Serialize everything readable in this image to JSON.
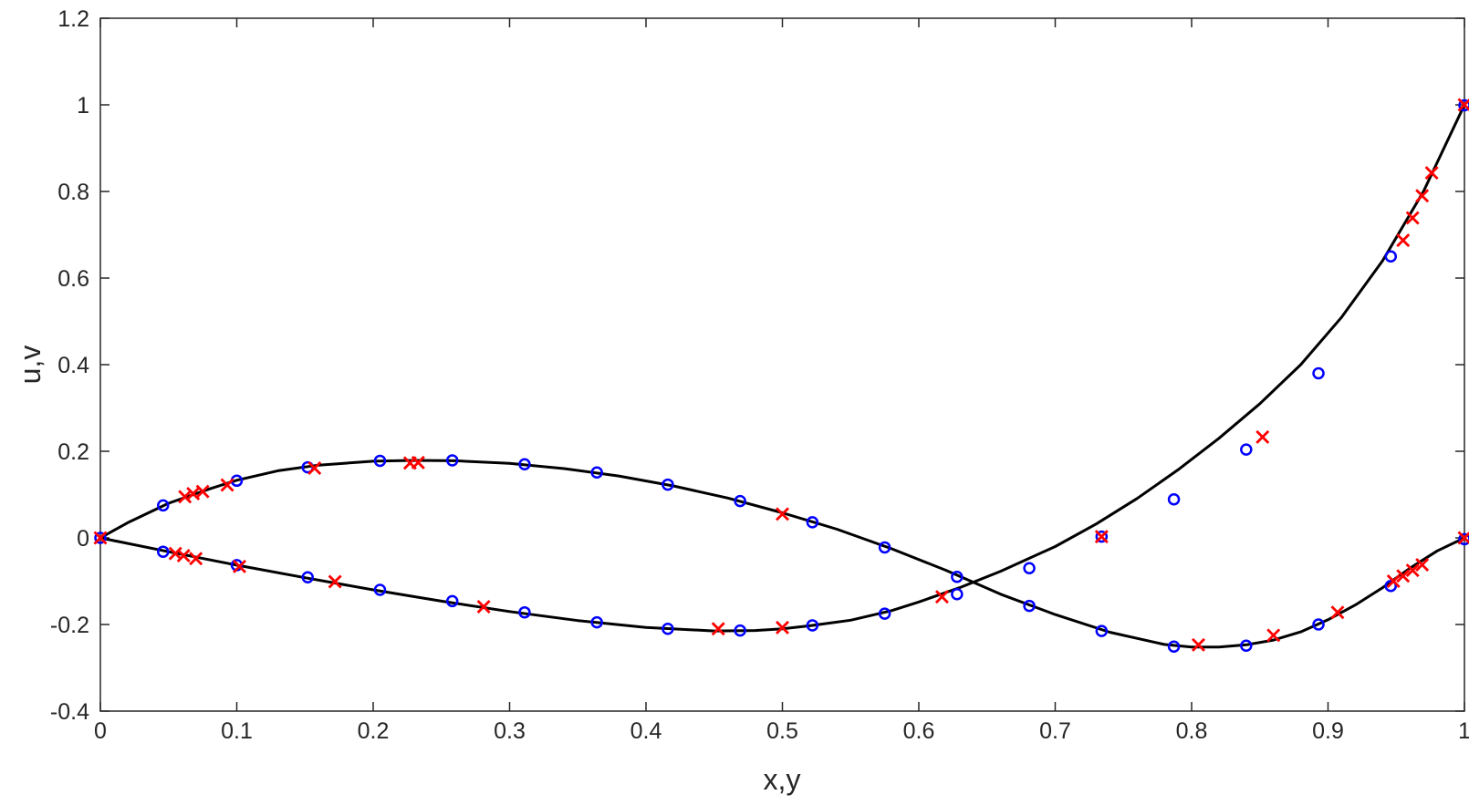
{
  "chart_data": {
    "type": "line",
    "xlabel": "x,y",
    "ylabel": "u,v",
    "xlim": [
      0,
      1
    ],
    "ylim": [
      -0.4,
      1.2
    ],
    "xticks": [
      0,
      0.1,
      0.2,
      0.3,
      0.4,
      0.5,
      0.6,
      0.7,
      0.8,
      0.9,
      1
    ],
    "xtick_labels": [
      "0",
      "0.1",
      "0.2",
      "0.3",
      "0.4",
      "0.5",
      "0.6",
      "0.7",
      "0.8",
      "0.9",
      "1"
    ],
    "yticks": [
      -0.4,
      -0.2,
      0,
      0.2,
      0.4,
      0.6,
      0.8,
      1,
      1.2
    ],
    "ytick_labels": [
      "-0.4",
      "-0.2",
      "0",
      "0.2",
      "0.4",
      "0.6",
      "0.8",
      "1",
      "1.2"
    ],
    "grid": false,
    "legend": "none",
    "colors": {
      "line": "#000000",
      "circle": "#0000ff",
      "cross": "#ff0000",
      "axis": "#262626"
    },
    "lines": [
      {
        "x": [
          0,
          0.02,
          0.05,
          0.08,
          0.1,
          0.13,
          0.16,
          0.2,
          0.23,
          0.26,
          0.3,
          0.34,
          0.38,
          0.42,
          0.46,
          0.5,
          0.54,
          0.58,
          0.62,
          0.66,
          0.7,
          0.74,
          0.78,
          0.8,
          0.82,
          0.84,
          0.86,
          0.88,
          0.9,
          0.92,
          0.94,
          0.96,
          0.98,
          1
        ],
        "y": [
          0,
          0.035,
          0.08,
          0.113,
          0.133,
          0.155,
          0.168,
          0.177,
          0.179,
          0.178,
          0.172,
          0.16,
          0.143,
          0.12,
          0.092,
          0.058,
          0.02,
          -0.025,
          -0.075,
          -0.13,
          -0.177,
          -0.218,
          -0.246,
          -0.252,
          -0.252,
          -0.247,
          -0.236,
          -0.217,
          -0.189,
          -0.155,
          -0.115,
          -0.07,
          -0.03,
          0
        ]
      },
      {
        "x": [
          0,
          0.05,
          0.1,
          0.15,
          0.2,
          0.25,
          0.3,
          0.35,
          0.4,
          0.45,
          0.48,
          0.5,
          0.52,
          0.55,
          0.58,
          0.6,
          0.63,
          0.66,
          0.7,
          0.73,
          0.76,
          0.79,
          0.82,
          0.85,
          0.88,
          0.91,
          0.94,
          0.97,
          1
        ],
        "y": [
          0,
          -0.032,
          -0.063,
          -0.092,
          -0.12,
          -0.146,
          -0.17,
          -0.191,
          -0.207,
          -0.215,
          -0.214,
          -0.21,
          -0.203,
          -0.19,
          -0.168,
          -0.148,
          -0.115,
          -0.077,
          -0.02,
          0.032,
          0.091,
          0.157,
          0.23,
          0.31,
          0.4,
          0.51,
          0.64,
          0.8,
          1
        ]
      }
    ],
    "markers_circle": {
      "x": [
        0,
        0.046,
        0.1,
        0.152,
        0.205,
        0.258,
        0.311,
        0.364,
        0.416,
        0.469,
        0.522,
        0.575,
        0.628,
        0.681,
        0.734,
        0.787,
        0.84,
        0.893,
        0.946,
        1,
        0.046,
        0.1,
        0.152,
        0.205,
        0.258,
        0.311,
        0.364,
        0.416,
        0.469,
        0.522,
        0.575,
        0.628,
        0.681,
        0.734,
        0.787,
        0.84,
        0.893,
        0.946,
        1
      ],
      "y": [
        0,
        0.075,
        0.132,
        0.163,
        0.178,
        0.179,
        0.17,
        0.151,
        0.123,
        0.085,
        0.036,
        -0.022,
        -0.09,
        -0.157,
        -0.215,
        -0.251,
        -0.249,
        -0.2,
        -0.111,
        -0.003,
        -0.032,
        -0.063,
        -0.091,
        -0.12,
        -0.146,
        -0.172,
        -0.195,
        -0.21,
        -0.214,
        -0.202,
        -0.175,
        -0.13,
        -0.07,
        0.003,
        0.089,
        0.204,
        0.38,
        0.65,
        0.999
      ]
    },
    "markers_cross": {
      "x": [
        0,
        0.062,
        0.068,
        0.075,
        0.093,
        0.157,
        0.227,
        0.233,
        0.5,
        0.805,
        0.86,
        0.907,
        0.948,
        0.955,
        0.962,
        0.969,
        1,
        0.055,
        0.061,
        0.07,
        0.102,
        0.172,
        0.281,
        0.453,
        0.5,
        0.617,
        0.734,
        0.852,
        0.955,
        0.962,
        0.969,
        0.976,
        1
      ],
      "y": [
        0,
        0.095,
        0.102,
        0.107,
        0.122,
        0.161,
        0.173,
        0.174,
        0.055,
        -0.247,
        -0.225,
        -0.172,
        -0.1,
        -0.088,
        -0.075,
        -0.062,
        0,
        -0.036,
        -0.041,
        -0.048,
        -0.066,
        -0.101,
        -0.159,
        -0.21,
        -0.207,
        -0.136,
        0.003,
        0.233,
        0.687,
        0.739,
        0.79,
        0.843,
        1
      ]
    }
  }
}
